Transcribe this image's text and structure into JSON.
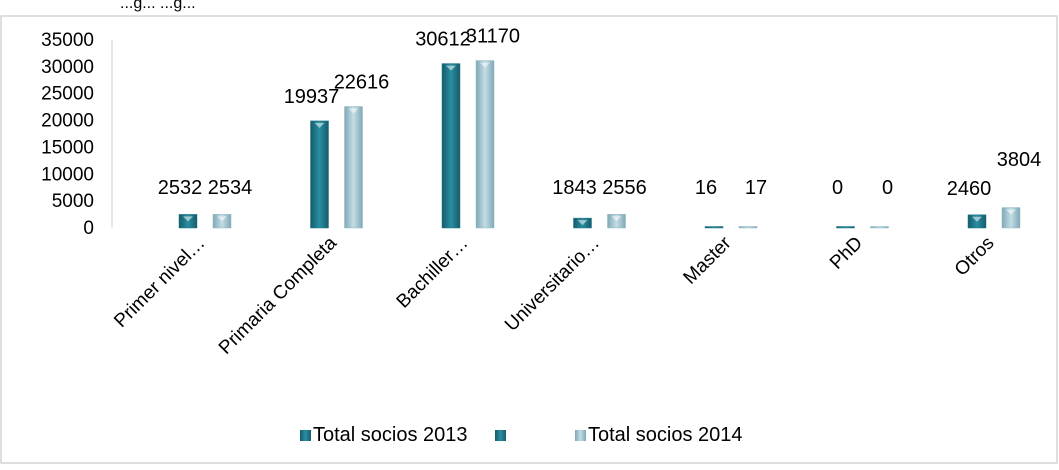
{
  "header_fragment": "...g... ...g...",
  "chart_data": {
    "type": "bar",
    "categories": [
      "Primer nivel…",
      "Primaria Completa",
      "Bachiller…",
      "Universitario…",
      "Master",
      "PhD",
      "Otros"
    ],
    "series": [
      {
        "name": "Total socios 2013",
        "values": [
          2532,
          19937,
          30612,
          1843,
          16,
          0,
          2460
        ],
        "color": "#1f7a8c"
      },
      {
        "name": "Total socios 2014",
        "values": [
          2534,
          22616,
          31170,
          2556,
          17,
          0,
          3804
        ],
        "color": "#8fb9c6"
      }
    ],
    "yticks": [
      "0",
      "5000",
      "10000",
      "15000",
      "20000",
      "25000",
      "30000",
      "35000"
    ],
    "ylim": [
      0,
      35000
    ],
    "grid": false,
    "legend_position": "bottom",
    "legend_items": [
      "Total socios 2013",
      "",
      "Total socios 2014"
    ],
    "data_labels": true
  }
}
